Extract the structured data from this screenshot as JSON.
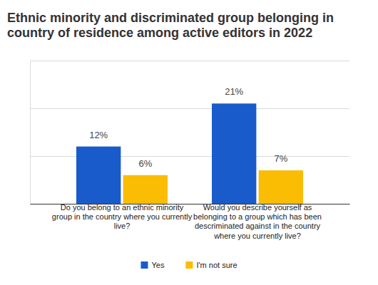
{
  "chart_data": {
    "type": "bar",
    "title": "Ethnic minority and discriminated group belonging in country of residence among active editors in 2022",
    "categories": [
      "Do you belong to an ethnic minority group in the country where you currently live?",
      "Would you describe yourself as belonging to a group which has been descriminated against in the country where you currently live?"
    ],
    "series": [
      {
        "name": "Yes",
        "color": "#1a5bcc",
        "values": [
          12,
          21
        ],
        "value_labels": [
          "12%",
          "21%"
        ]
      },
      {
        "name": "I'm not sure",
        "color": "#fbbc04",
        "values": [
          6,
          7
        ],
        "value_labels": [
          "6%",
          "7%"
        ]
      }
    ],
    "ylim": [
      0,
      30
    ],
    "yticks": [
      0,
      10,
      20,
      30
    ],
    "grid": true,
    "legend": "bottom",
    "data_labels": true,
    "tick_labels": "x"
  }
}
